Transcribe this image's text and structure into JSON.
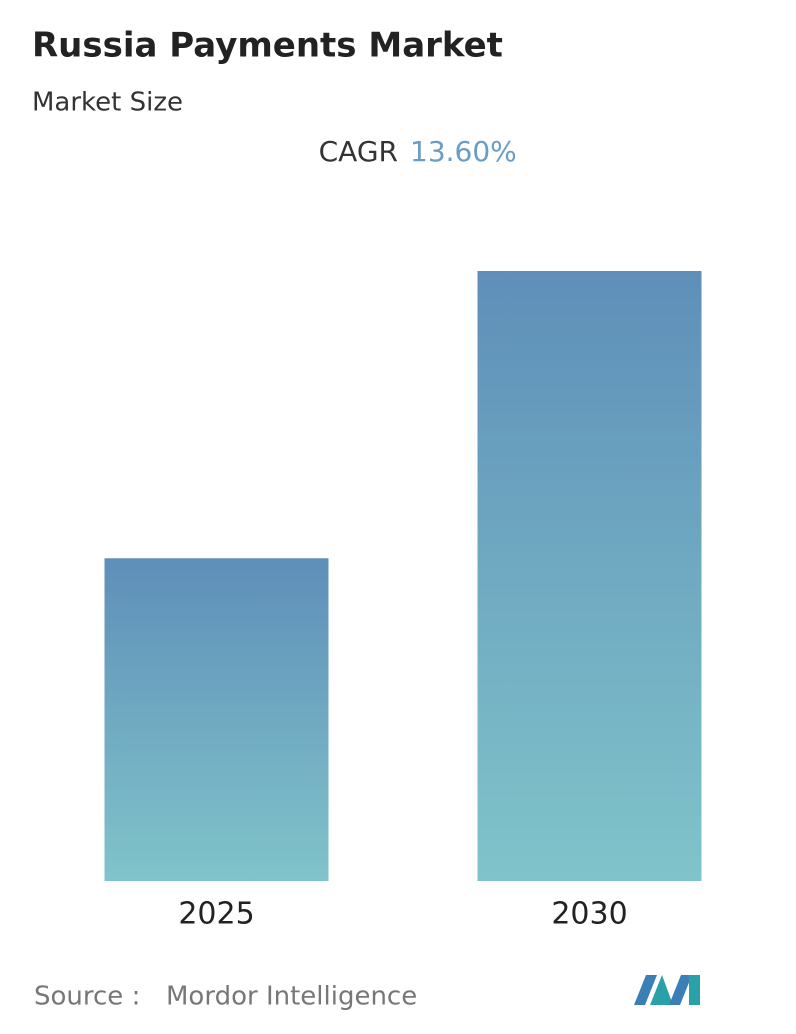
{
  "chart_data": {
    "type": "bar",
    "title": "Russia Payments Market",
    "subtitle": "Market Size",
    "cagr_label": "CAGR",
    "cagr_value": "13.60%",
    "categories": [
      "2025",
      "2030"
    ],
    "values": [
      1,
      1.89
    ],
    "ylim": [
      0,
      1.89
    ],
    "color_top": "#5f8fb9",
    "color_bottom": "#80c4ca",
    "source_label": "Source :",
    "source": "Mordor Intelligence"
  }
}
